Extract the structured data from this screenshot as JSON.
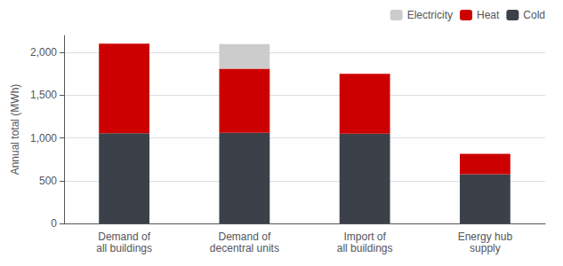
{
  "chart_data": {
    "type": "bar",
    "categories": [
      "Demand of\nall buildings",
      "Demand of\ndecentral units",
      "Import of\nall buildings",
      "Energy hub\nsupply"
    ],
    "series": [
      {
        "name": "Cold",
        "color": "#3c4049",
        "values": [
          1055,
          1060,
          1050,
          575
        ]
      },
      {
        "name": "Heat",
        "color": "#cc0000",
        "values": [
          1050,
          750,
          700,
          240
        ]
      },
      {
        "name": "Electricity",
        "color": "#cccccc",
        "values": [
          0,
          290,
          0,
          0
        ]
      }
    ],
    "ylabel": "Annual total (MWh)",
    "ylim": [
      0,
      2200
    ],
    "yticks": [
      0,
      500,
      1000,
      1500,
      2000
    ],
    "stacked": true,
    "grid": true,
    "legend": "upper right"
  }
}
